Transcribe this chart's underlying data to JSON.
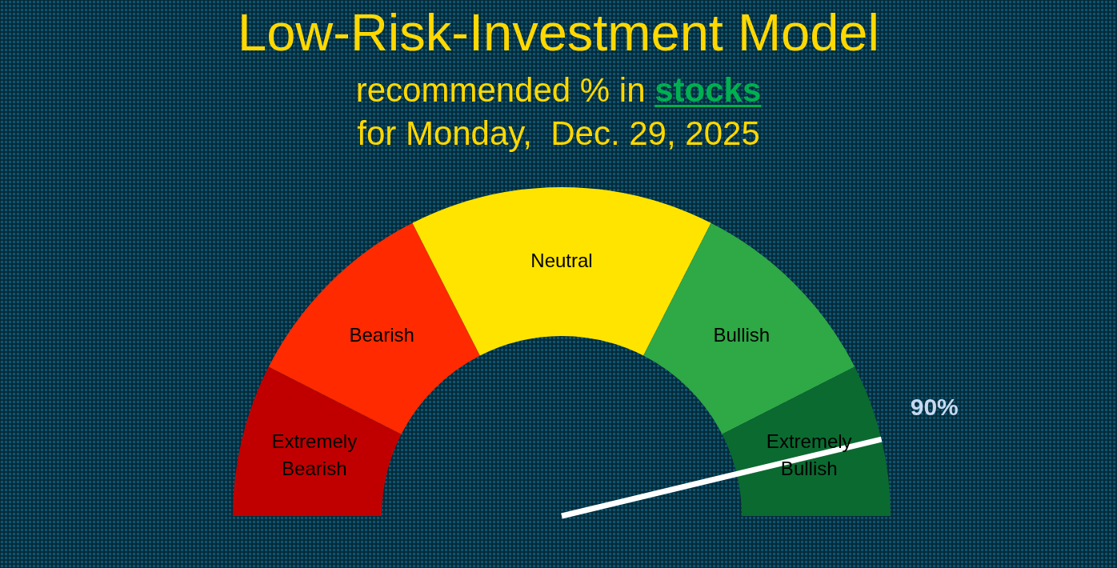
{
  "chart_data": {
    "type": "donut",
    "title": "Low-Risk-Investment Model",
    "subtitle": "recommended % in stocks\nfor Monday,  Dec. 29, 2025",
    "categories": [
      "Extremely Bearish",
      "Bearish",
      "Neutral",
      "Bullish",
      "Extremely Bullish"
    ],
    "values": [
      15,
      20,
      30,
      20,
      15
    ],
    "colors": [
      "#c00000",
      "#ff2a00",
      "#ffe400",
      "#2fa846",
      "#0b6a30"
    ],
    "needle": "Extremely Bullish",
    "annotations": [
      "90%"
    ]
  }
}
